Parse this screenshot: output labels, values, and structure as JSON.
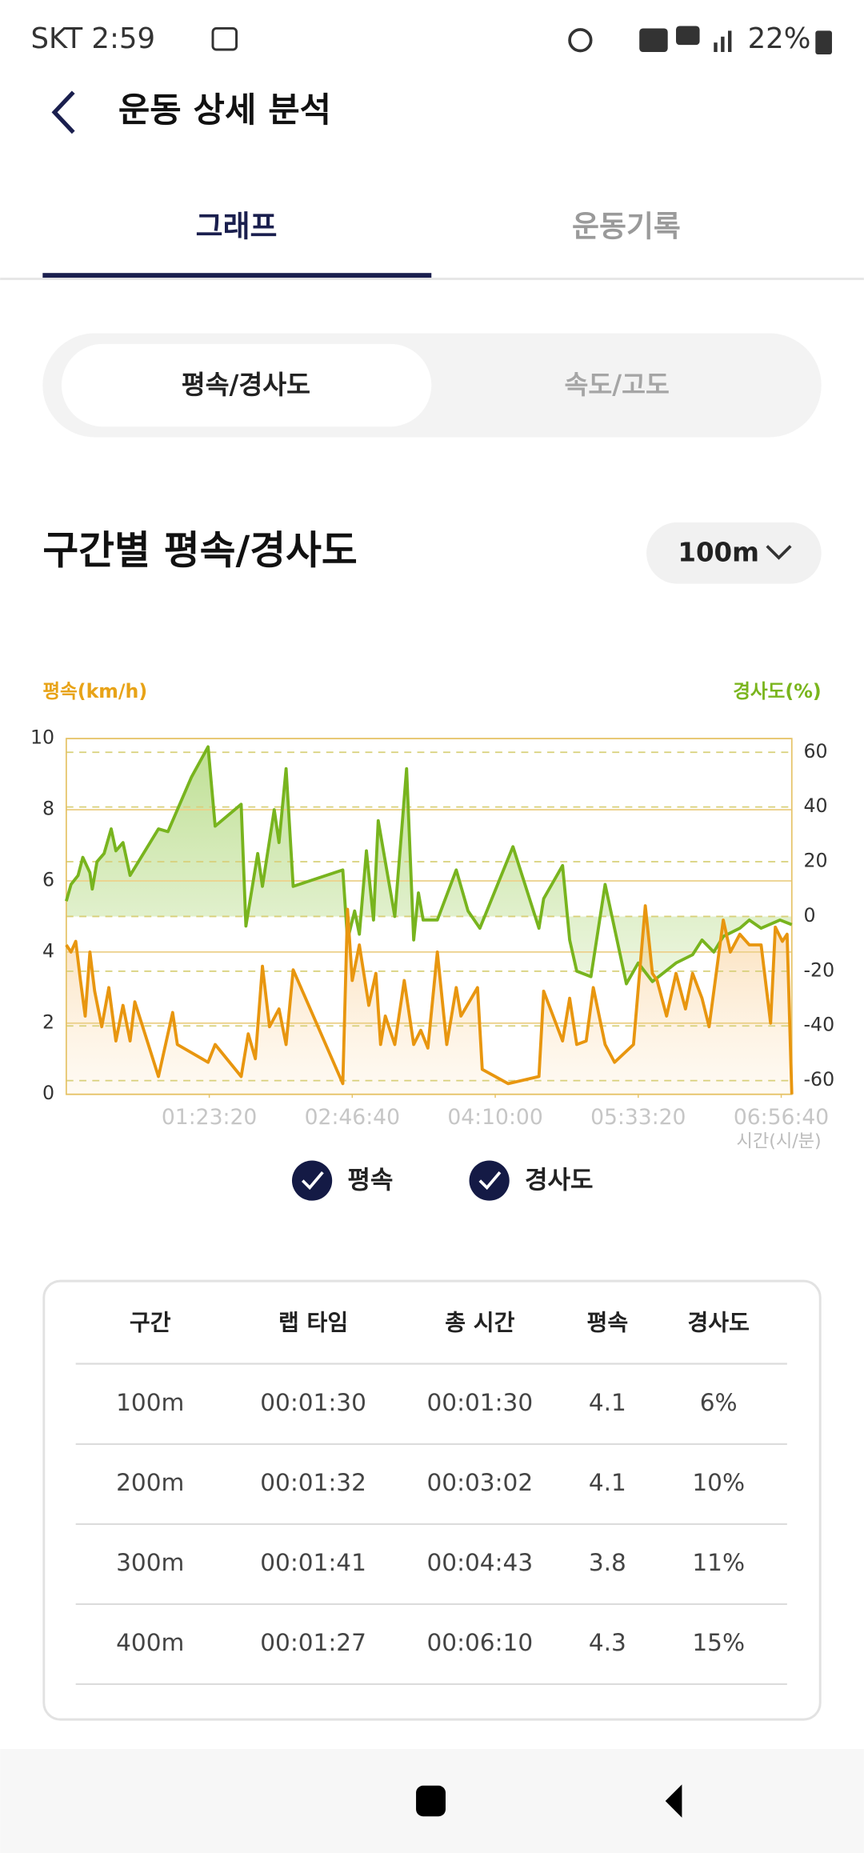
{
  "status_bar": {
    "carrier_time": "SKT 2:59",
    "battery": "22%"
  },
  "header": {
    "title": "운동 상세 분석"
  },
  "tabs": [
    "그래프",
    "운동기록"
  ],
  "segments": [
    "평속/경사도",
    "속도/고도"
  ],
  "section": {
    "title": "구간별 평속/경사도",
    "dropdown": "100m"
  },
  "chart_data": {
    "type": "line",
    "ylabel": "평속(km/h)",
    "y2label": "경사도(%)",
    "xlabel": "시간(시/분)",
    "xlim": [
      0,
      25370
    ],
    "xticks": [
      {
        "value": 5000,
        "label": "01:23:20"
      },
      {
        "value": 10000,
        "label": "02:46:40"
      },
      {
        "value": 15000,
        "label": "04:10:00"
      },
      {
        "value": 20000,
        "label": "05:33:20"
      },
      {
        "value": 25000,
        "label": "06:56:40"
      }
    ],
    "ylim": [
      0,
      10
    ],
    "yticks": [
      0,
      2,
      4,
      6,
      8,
      10
    ],
    "y2lim": [
      -65,
      65
    ],
    "y2ticks": [
      -60,
      -40,
      -20,
      0,
      20,
      40,
      60
    ],
    "grid": true,
    "series": [
      {
        "name": "평속",
        "color": "#e8960f",
        "x": [
          0,
          165,
          331,
          496,
          661,
          826,
          992,
          1240,
          1488,
          1735,
          1983,
          2231,
          2397,
          3223,
          3719,
          3884,
          4958,
          5206,
          6115,
          6363,
          6611,
          6859,
          7107,
          7438,
          7686,
          7934,
          9669,
          9834,
          9999,
          10248,
          10578,
          10826,
          10991,
          11156,
          11487,
          11818,
          12148,
          12396,
          12644,
          12975,
          13305,
          13636,
          13801,
          14380,
          14545,
          15454,
          16528,
          16693,
          17354,
          17602,
          17850,
          18181,
          18429,
          18842,
          19172,
          19834,
          20247,
          20495,
          20660,
          20991,
          21321,
          21652,
          21900,
          22230,
          22478,
          22726,
          22974,
          23222,
          23553,
          23884,
          24297,
          24628,
          24793,
          25040,
          25205,
          25370
        ],
        "values": [
          4.2,
          4.0,
          4.3,
          3.2,
          2.2,
          4.0,
          2.9,
          1.9,
          3.0,
          1.5,
          2.5,
          1.5,
          2.6,
          0.5,
          2.3,
          1.4,
          0.9,
          1.4,
          0.5,
          1.7,
          1.0,
          3.6,
          1.9,
          2.4,
          1.4,
          3.5,
          0.3,
          5.2,
          3.2,
          4.2,
          2.5,
          3.4,
          1.4,
          2.2,
          1.4,
          3.2,
          1.4,
          1.8,
          1.3,
          4.0,
          1.4,
          3.0,
          2.2,
          3.0,
          0.7,
          0.3,
          0.5,
          2.9,
          1.5,
          2.7,
          1.4,
          1.5,
          3.0,
          1.4,
          0.9,
          1.4,
          5.3,
          3.4,
          3.2,
          2.2,
          3.4,
          2.4,
          3.4,
          2.7,
          1.9,
          3.4,
          4.9,
          4.0,
          4.5,
          4.2,
          4.2,
          2.0,
          4.7,
          4.3,
          4.5,
          0
        ]
      },
      {
        "name": "경사도",
        "color": "#78b41e",
        "axis": "y2",
        "x": [
          0,
          165,
          413,
          578,
          826,
          909,
          1074,
          1322,
          1570,
          1735,
          1983,
          2231,
          3223,
          3554,
          4380,
          4958,
          5206,
          6115,
          6281,
          6694,
          6859,
          7272,
          7438,
          7686,
          7934,
          9669,
          9834,
          10083,
          10248,
          10495,
          10743,
          10908,
          11487,
          11900,
          12148,
          12314,
          12479,
          12975,
          13636,
          14049,
          14462,
          15619,
          16528,
          16693,
          17354,
          17602,
          17850,
          18346,
          18842,
          19586,
          20000,
          20495,
          21321,
          21900,
          22230,
          22643,
          22974,
          23553,
          23884,
          24297,
          24958,
          25370
        ],
        "values": [
          5.6,
          11.7,
          15,
          21.6,
          16,
          10,
          20,
          23,
          32,
          24,
          27,
          15,
          32,
          31,
          51,
          62,
          33,
          41,
          -3.5,
          23,
          11,
          39,
          27,
          54,
          11,
          17,
          -8.6,
          2,
          -6.5,
          24,
          -1.3,
          35,
          0,
          54,
          -8.6,
          8.6,
          -1.3,
          -1.3,
          17,
          2,
          -4.3,
          25.5,
          -4.3,
          6.5,
          18.6,
          -8.6,
          -20,
          -22,
          11.7,
          -24.6,
          -17,
          -23.8,
          -17,
          -14,
          -8.6,
          -13,
          -7.3,
          -4.3,
          -1.3,
          -4.3,
          -1.3,
          -3
        ]
      }
    ]
  },
  "table": {
    "columns": [
      "구간",
      "랩 타임",
      "총 시간",
      "평속",
      "경사도"
    ],
    "rows": [
      [
        "100m",
        "00:01:30",
        "00:01:30",
        "4.1",
        "6%"
      ],
      [
        "200m",
        "00:01:32",
        "00:03:02",
        "4.1",
        "10%"
      ],
      [
        "300m",
        "00:01:41",
        "00:04:43",
        "3.8",
        "11%"
      ],
      [
        "400m",
        "00:01:27",
        "00:06:10",
        "4.3",
        "15%"
      ]
    ]
  }
}
